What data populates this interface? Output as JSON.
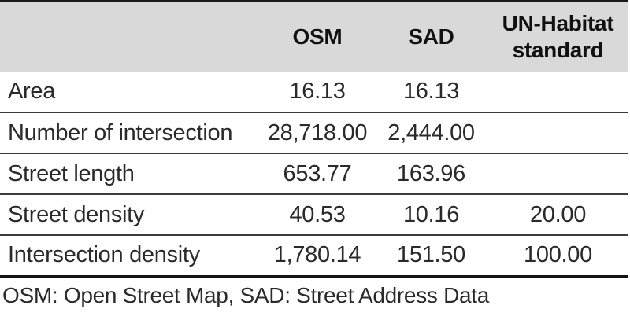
{
  "chart_data": {
    "type": "table",
    "title": "",
    "columns": [
      "",
      "OSM",
      "SAD",
      "UN-Habitat standard"
    ],
    "rows": [
      {
        "metric": "Area",
        "OSM": 16.13,
        "SAD": 16.13,
        "UN-Habitat standard": null
      },
      {
        "metric": "Number of intersection",
        "OSM": 28718.0,
        "SAD": 2444.0,
        "UN-Habitat standard": null
      },
      {
        "metric": "Street length",
        "OSM": 653.77,
        "SAD": 163.96,
        "UN-Habitat standard": null
      },
      {
        "metric": "Street density",
        "OSM": 40.53,
        "SAD": 10.16,
        "UN-Habitat standard": 20.0
      },
      {
        "metric": "Intersection density",
        "OSM": 1780.14,
        "SAD": 151.5,
        "UN-Habitat standard": 100.0
      }
    ],
    "note": "OSM: Open Street Map, SAD: Street Address Data",
    "layout": {
      "grid": "horizontal-rules-only",
      "header_background": "#d9d9d9",
      "legend": "none"
    }
  },
  "table": {
    "columns": [
      "",
      "OSM",
      "SAD",
      "UN-Habitat standard"
    ],
    "rows": [
      {
        "label": "Area",
        "values": [
          "16.13",
          "16.13",
          ""
        ]
      },
      {
        "label": "Number of intersection",
        "values": [
          "28,718.00",
          "2,444.00",
          ""
        ]
      },
      {
        "label": "Street length",
        "values": [
          "653.77",
          "163.96",
          ""
        ]
      },
      {
        "label": "Street density",
        "values": [
          "40.53",
          "10.16",
          "20.00"
        ]
      },
      {
        "label": "Intersection density",
        "values": [
          "1,780.14",
          "151.50",
          "100.00"
        ]
      }
    ]
  },
  "footer": {
    "note": "OSM: Open Street Map, SAD: Street Address Data"
  },
  "colors": {
    "header_bg": "#d9d9d9",
    "top_border": "#1b1b1b",
    "row_separator": "#3c3c3c",
    "bottom_border": "#141414",
    "text": "#2a2a2a"
  }
}
